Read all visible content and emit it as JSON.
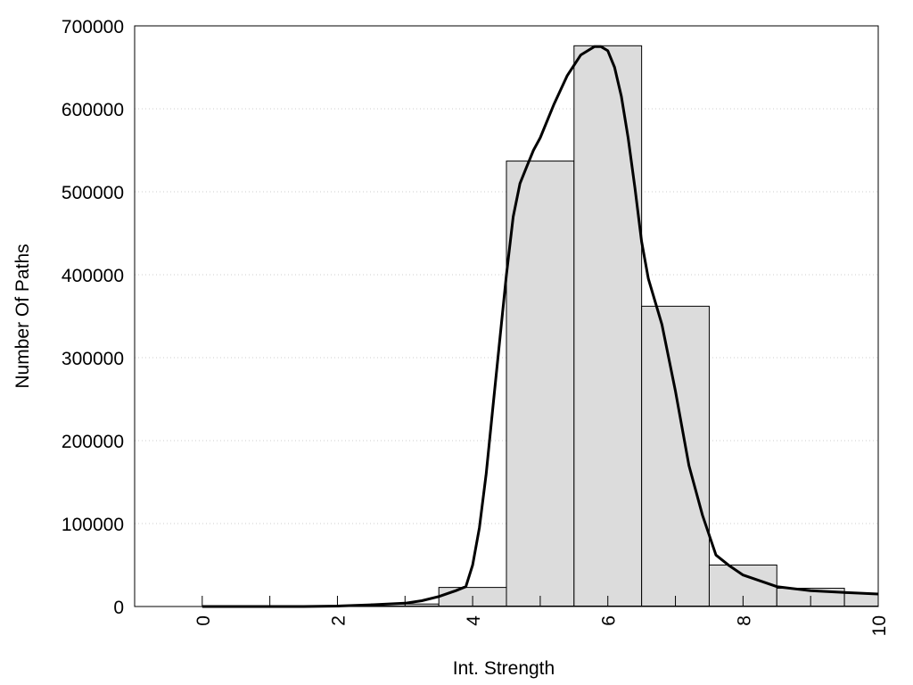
{
  "chart_data": {
    "type": "bar",
    "xlabel": "Int. Strength",
    "ylabel": "Number Of Paths",
    "xlim": [
      -1,
      10
    ],
    "ylim": [
      0,
      700000
    ],
    "x_ticks": [
      0,
      2,
      4,
      6,
      8,
      10
    ],
    "x_tick_labels": [
      "0",
      "2",
      "4",
      "6",
      "8",
      "10"
    ],
    "y_ticks": [
      0,
      100000,
      200000,
      300000,
      400000,
      500000,
      600000,
      700000
    ],
    "y_tick_labels": [
      "0",
      "100000",
      "200000",
      "300000",
      "400000",
      "500000",
      "600000",
      "700000"
    ],
    "grid": "horizontal dotted",
    "bar_width": 1,
    "bars": [
      {
        "x": 0,
        "value": 0
      },
      {
        "x": 1,
        "value": 0
      },
      {
        "x": 2,
        "value": 1000
      },
      {
        "x": 3,
        "value": 3000
      },
      {
        "x": 4,
        "value": 23000
      },
      {
        "x": 5,
        "value": 537000
      },
      {
        "x": 6,
        "value": 676000
      },
      {
        "x": 7,
        "value": 362000
      },
      {
        "x": 8,
        "value": 50000
      },
      {
        "x": 9,
        "value": 22000
      },
      {
        "x": 10,
        "value": 16000
      }
    ],
    "curve": {
      "x": [
        0,
        1,
        1.5,
        2,
        2.5,
        3,
        3.25,
        3.5,
        3.75,
        3.9,
        4.0,
        4.1,
        4.2,
        4.3,
        4.4,
        4.5,
        4.6,
        4.7,
        4.8,
        4.9,
        5.0,
        5.2,
        5.4,
        5.6,
        5.8,
        5.9,
        6.0,
        6.1,
        6.2,
        6.3,
        6.4,
        6.5,
        6.6,
        6.8,
        7.0,
        7.2,
        7.4,
        7.6,
        7.8,
        8.0,
        8.5,
        9.0,
        9.5,
        10.0
      ],
      "y": [
        0,
        0,
        0,
        500,
        2000,
        4000,
        7000,
        12000,
        19000,
        24000,
        50000,
        95000,
        160000,
        240000,
        320000,
        400000,
        470000,
        510000,
        530000,
        550000,
        565000,
        605000,
        640000,
        665000,
        675000,
        675000,
        670000,
        650000,
        615000,
        565000,
        505000,
        440000,
        395000,
        340000,
        260000,
        170000,
        110000,
        62000,
        49000,
        38000,
        24000,
        19000,
        17000,
        15000
      ]
    },
    "colors": {
      "bar_fill": "#dcdcdc",
      "bar_stroke": "#000000",
      "curve": "#000000",
      "grid": "#cccccc"
    }
  }
}
